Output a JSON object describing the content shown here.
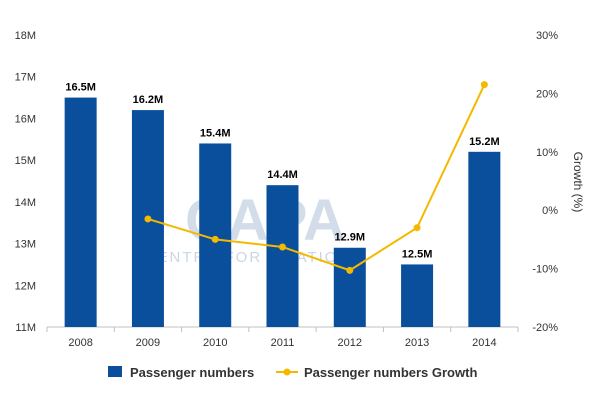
{
  "chart_data": {
    "type": "bar",
    "categories": [
      "2008",
      "2009",
      "2010",
      "2011",
      "2012",
      "2013",
      "2014"
    ],
    "series": [
      {
        "name": "Passenger numbers",
        "type": "bar",
        "axis": "left",
        "values": [
          16.5,
          16.2,
          15.4,
          14.4,
          12.9,
          12.5,
          15.2
        ],
        "labels": [
          "16.5M",
          "16.2M",
          "15.4M",
          "14.4M",
          "12.9M",
          "12.5M",
          "15.2M"
        ],
        "color": "#0a4f9c"
      },
      {
        "name": "Passenger numbers Growth",
        "type": "line",
        "axis": "right",
        "values": [
          null,
          -1.5,
          -5,
          -6.3,
          -10.3,
          -3,
          21.5
        ],
        "color": "#f5b800"
      }
    ],
    "y_left": {
      "ylim": [
        11,
        18
      ],
      "ticks": [
        11,
        12,
        13,
        14,
        15,
        16,
        17,
        18
      ],
      "tick_labels": [
        "11M",
        "12M",
        "13M",
        "14M",
        "15M",
        "16M",
        "17M",
        "18M"
      ],
      "label": ""
    },
    "y_right": {
      "ylim": [
        -20,
        30
      ],
      "ticks": [
        -20,
        -10,
        0,
        10,
        20,
        30
      ],
      "tick_labels": [
        "-20%",
        "-10%",
        "0%",
        "10%",
        "20%",
        "30%"
      ],
      "label": "Growth (%)"
    },
    "xlabel": "",
    "title": "",
    "grid": false,
    "legend": "bottom-center"
  },
  "watermark": {
    "main": "CAPA",
    "sub": "CENTRE FOR AVIATION"
  }
}
